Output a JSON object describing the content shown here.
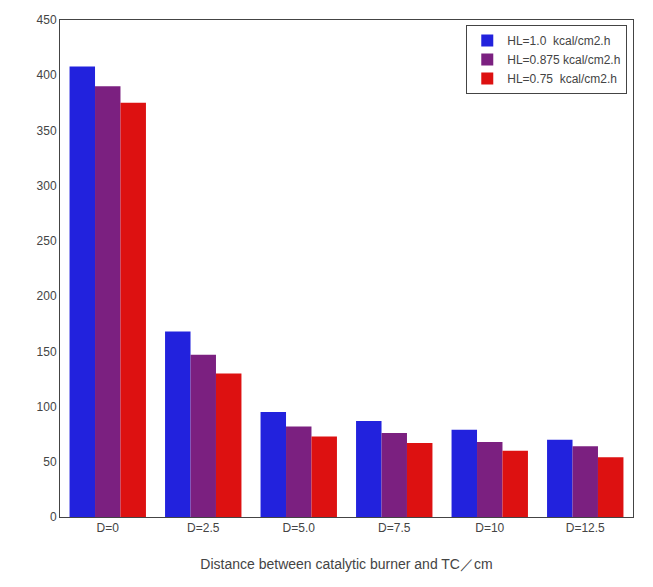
{
  "chart_data": {
    "type": "bar",
    "categories": [
      "D=0",
      "D=2.5",
      "D=5.0",
      "D=7.5",
      "D=10",
      "D=12.5"
    ],
    "series": [
      {
        "name": "HL=1.0  kcal/cm2.h",
        "color": "#2222dd",
        "values": [
          408,
          168,
          95,
          87,
          79,
          70
        ]
      },
      {
        "name": "HL=0.875 kcal/cm2.h",
        "color": "#7b2080",
        "values": [
          390,
          147,
          82,
          76,
          68,
          64
        ]
      },
      {
        "name": "HL=0.75  kcal/cm2.h",
        "color": "#dd1111",
        "values": [
          375,
          130,
          73,
          67,
          60,
          54
        ]
      }
    ],
    "xlabel": "Distance between catalytic burner and TC／cm",
    "ylim": [
      0,
      450
    ],
    "yticks": [
      0,
      50,
      100,
      150,
      200,
      250,
      300,
      350,
      400,
      450
    ],
    "grid": false,
    "legend": "upper right"
  }
}
